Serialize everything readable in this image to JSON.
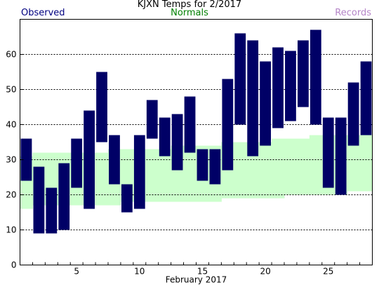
{
  "chart_data": {
    "type": "bar",
    "title": "KJXN Temps for 2/2017",
    "xlabel": "February 2017",
    "ylabel": "",
    "legend": [
      "Observed",
      "Normals",
      "Records"
    ],
    "legend_placement": "top",
    "colors": {
      "observed": "#000066",
      "normals": "#ccffcc",
      "records": "#b585c8",
      "grid": "#000000"
    },
    "ylim": [
      0,
      70
    ],
    "y_ticks": [
      0,
      10,
      20,
      30,
      40,
      50,
      60
    ],
    "x_ticks": [
      5,
      10,
      15,
      20,
      25
    ],
    "grid": "horizontal-dashed",
    "days": [
      1,
      2,
      3,
      4,
      5,
      6,
      7,
      8,
      9,
      10,
      11,
      12,
      13,
      14,
      15,
      16,
      17,
      18,
      19,
      20,
      21,
      22,
      23,
      24,
      25,
      26,
      27,
      28
    ],
    "observed_high": [
      36,
      28,
      22,
      29,
      36,
      44,
      55,
      37,
      23,
      37,
      47,
      42,
      43,
      48,
      33,
      33,
      53,
      66,
      64,
      58,
      62,
      61,
      64,
      67,
      42,
      42,
      52,
      58
    ],
    "observed_low": [
      24,
      9,
      9,
      10,
      22,
      16,
      35,
      23,
      15,
      16,
      36,
      31,
      27,
      32,
      24,
      23,
      27,
      40,
      31,
      34,
      39,
      41,
      45,
      40,
      22,
      20,
      34,
      37
    ],
    "normal_high": [
      31,
      32,
      32,
      32,
      32,
      32,
      32,
      33,
      33,
      33,
      33,
      33,
      34,
      34,
      34,
      34,
      35,
      35,
      35,
      35,
      36,
      36,
      36,
      37,
      37,
      37,
      37,
      37
    ],
    "normal_low": [
      16,
      17,
      17,
      17,
      17,
      17,
      17,
      17,
      18,
      18,
      18,
      18,
      18,
      18,
      18,
      18,
      19,
      19,
      19,
      19,
      19,
      20,
      20,
      20,
      20,
      20,
      21,
      21
    ]
  }
}
